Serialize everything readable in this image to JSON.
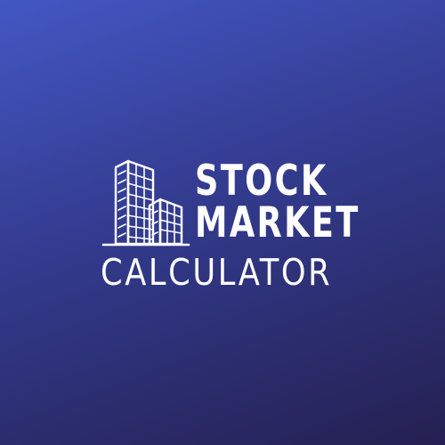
{
  "logo": {
    "icon": "office-buildings-icon",
    "title_line_1": "STOCK",
    "title_line_2": "MARKET",
    "subtitle": "CALCULATOR"
  },
  "colors": {
    "gradient_start": "#4357c4",
    "gradient_end": "#242051",
    "foreground": "#ffffff"
  }
}
